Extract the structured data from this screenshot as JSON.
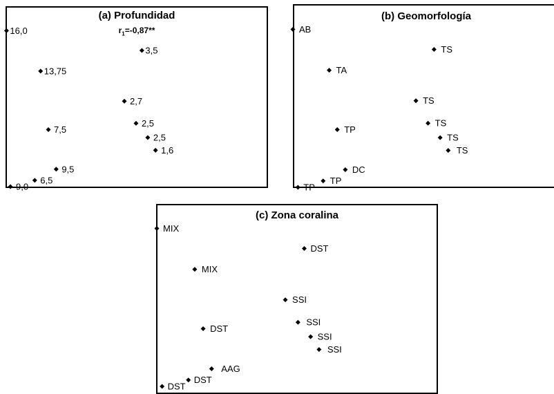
{
  "chart_data": [
    {
      "type": "scatter",
      "title": "(a) Profundidad",
      "annotation_prefix": "r",
      "annotation_sub": "1",
      "annotation_rest": "=-0,87**",
      "xlim": [
        0,
        100
      ],
      "ylim": [
        0,
        100
      ],
      "points": [
        {
          "x": 0.5,
          "y": 98.5,
          "label": "16,0"
        },
        {
          "x": 70,
          "y": 86,
          "label": "3,5"
        },
        {
          "x": 18,
          "y": 73,
          "label": "13,75"
        },
        {
          "x": 61,
          "y": 54,
          "label": "2,7"
        },
        {
          "x": 67,
          "y": 40,
          "label": "2,5"
        },
        {
          "x": 22,
          "y": 36,
          "label": "7,5"
        },
        {
          "x": 73,
          "y": 31,
          "label": "2,5"
        },
        {
          "x": 77,
          "y": 23,
          "label": "1,6"
        },
        {
          "x": 26,
          "y": 11,
          "label": "9,5"
        },
        {
          "x": 15,
          "y": 4,
          "label": "6,5"
        },
        {
          "x": 2.5,
          "y": 0,
          "label": "9,0"
        }
      ]
    },
    {
      "type": "scatter",
      "title": "(b) Geomorfología",
      "xlim": [
        0,
        100
      ],
      "ylim": [
        0,
        100
      ],
      "points": [
        {
          "x": 0,
          "y": 98.5,
          "label": "AB"
        },
        {
          "x": 70,
          "y": 86,
          "label": "TS"
        },
        {
          "x": 18,
          "y": 73,
          "label": "TA"
        },
        {
          "x": 61,
          "y": 54,
          "label": "TS"
        },
        {
          "x": 67,
          "y": 40,
          "label": "TS"
        },
        {
          "x": 22,
          "y": 36,
          "label": "TP"
        },
        {
          "x": 73,
          "y": 31,
          "label": "TS"
        },
        {
          "x": 77,
          "y": 23,
          "label": "TS"
        },
        {
          "x": 26,
          "y": 11,
          "label": "DC"
        },
        {
          "x": 15,
          "y": 4,
          "label": "TP"
        },
        {
          "x": 2.5,
          "y": 0,
          "label": "TP"
        }
      ]
    },
    {
      "type": "scatter",
      "title": "(c) Zona coralina",
      "xlim": [
        0,
        100
      ],
      "ylim": [
        0,
        100
      ],
      "points": [
        {
          "x": 0,
          "y": 98.5,
          "label": "MIX"
        },
        {
          "x": 70,
          "y": 86,
          "label": "DST"
        },
        {
          "x": 18,
          "y": 73,
          "label": "MIX"
        },
        {
          "x": 61,
          "y": 54,
          "label": "SSI"
        },
        {
          "x": 67,
          "y": 40,
          "label": "SSI"
        },
        {
          "x": 22,
          "y": 36,
          "label": "DST"
        },
        {
          "x": 73,
          "y": 31,
          "label": "SSI"
        },
        {
          "x": 77,
          "y": 23,
          "label": "SSI"
        },
        {
          "x": 26,
          "y": 11,
          "label": "AAG"
        },
        {
          "x": 15,
          "y": 4,
          "label": "DST"
        },
        {
          "x": 2.5,
          "y": 0,
          "label": "DST"
        }
      ]
    }
  ]
}
